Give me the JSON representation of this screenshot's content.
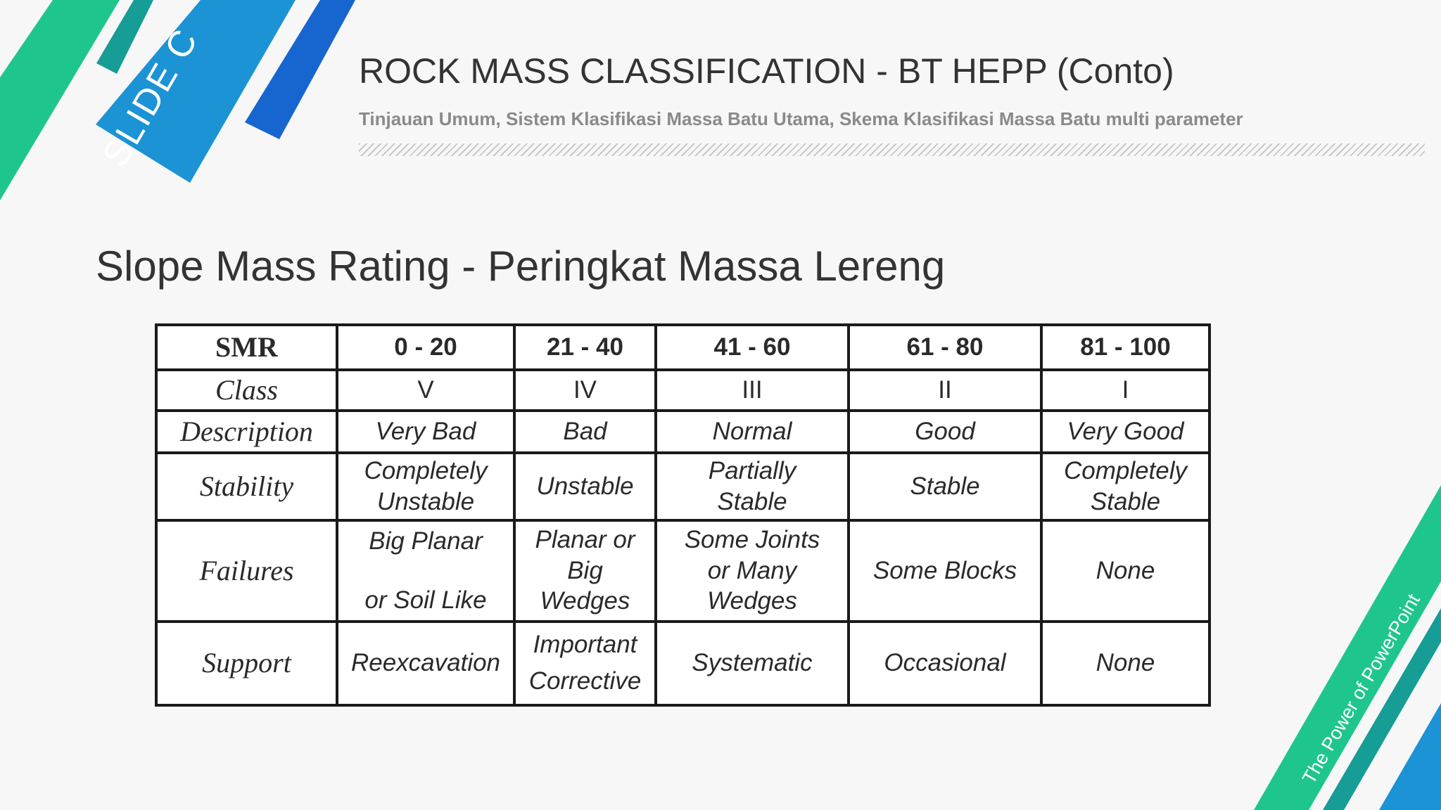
{
  "slide_tag": "SLIDE C",
  "header": {
    "title": "ROCK MASS CLASSIFICATION - BT HEPP (Conto)",
    "subtitle": "Tinjauan Umum, Sistem Klasifikasi Massa Batu Utama, Skema Klasifikasi Massa Batu multi parameter"
  },
  "section_title": "Slope Mass Rating - Peringkat Massa Lereng",
  "table": {
    "header": {
      "label": "SMR",
      "values": [
        "0 - 20",
        "21 - 40",
        "41 - 60",
        "61 - 80",
        "81 - 100"
      ]
    },
    "class": {
      "label": "Class",
      "values": [
        "V",
        "IV",
        "III",
        "II",
        "I"
      ]
    },
    "description": {
      "label": "Description",
      "values": [
        "Very Bad",
        "Bad",
        "Normal",
        "Good",
        "Very Good"
      ]
    },
    "stability": {
      "label": "Stability",
      "values": [
        [
          "Completely",
          "Unstable"
        ],
        [
          "Unstable"
        ],
        [
          "Partially",
          "Stable"
        ],
        [
          "Stable"
        ],
        [
          "Completely",
          "Stable"
        ]
      ]
    },
    "failures": {
      "label": "Failures",
      "values": [
        [
          "Big Planar",
          "or Soil Like"
        ],
        [
          "Planar or",
          "Big",
          "Wedges"
        ],
        [
          "Some Joints",
          "or Many",
          "Wedges"
        ],
        [
          "Some Blocks"
        ],
        [
          "None"
        ]
      ]
    },
    "support": {
      "label": "Support",
      "values": [
        [
          "Reexcavation"
        ],
        [
          "Important",
          "Corrective"
        ],
        [
          "Systematic"
        ],
        [
          "Occasional"
        ],
        [
          "None"
        ]
      ]
    }
  },
  "footer_tag": "The Power of PowerPoint",
  "colors": {
    "green": "#1ec68d",
    "teal": "#159d96",
    "blue": "#1b93d5",
    "royal": "#1765cf"
  }
}
